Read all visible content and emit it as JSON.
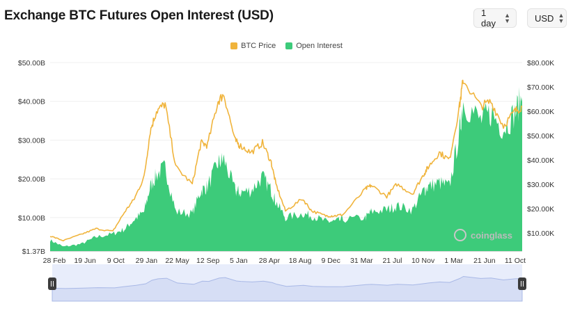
{
  "header": {
    "title": "Exchange BTC Futures Open Interest (USD)",
    "period_select": "1 day",
    "currency_select": "USD"
  },
  "watermark": "coinglass",
  "colors": {
    "btc_price": "#f0b43c",
    "open_interest": "#3dcb7a",
    "navigator_fill": "#e4eafb",
    "navigator_line": "#9fb3e8"
  },
  "chart_data": {
    "type": "area",
    "legend_placement": "top-center",
    "grid": true,
    "x_tick_labels": [
      "28 Feb",
      "19 Jun",
      "9 Oct",
      "29 Jan",
      "22 May",
      "12 Sep",
      "5 Jan",
      "28 Apr",
      "18 Aug",
      "9 Dec",
      "31 Mar",
      "21 Jul",
      "10 Nov",
      "1 Mar",
      "21 Jun",
      "11 Oct"
    ],
    "y_left_ticks": [
      "$1.37B",
      "$10.00B",
      "$20.00B",
      "$30.00B",
      "$40.00B",
      "$50.00B"
    ],
    "y_right_ticks": [
      "$10.00K",
      "$20.00K",
      "$30.00K",
      "$40.00K",
      "$50.00K",
      "$60.00K",
      "$70.00K",
      "$80.00K"
    ],
    "ylim_left": [
      1.37,
      50
    ],
    "ylim_right": [
      2500,
      80000
    ],
    "x": [
      "2020-02-28",
      "2020-04-15",
      "2020-06-19",
      "2020-08-10",
      "2020-10-09",
      "2020-11-20",
      "2020-12-25",
      "2021-01-29",
      "2021-02-20",
      "2021-03-14",
      "2021-04-14",
      "2021-05-22",
      "2021-07-20",
      "2021-08-20",
      "2021-09-12",
      "2021-10-20",
      "2021-11-10",
      "2021-12-20",
      "2022-01-05",
      "2022-02-15",
      "2022-03-28",
      "2022-04-28",
      "2022-05-15",
      "2022-06-18",
      "2022-08-18",
      "2022-09-20",
      "2022-11-09",
      "2022-12-09",
      "2023-01-10",
      "2023-03-31",
      "2023-04-20",
      "2023-06-15",
      "2023-07-21",
      "2023-09-15",
      "2023-10-25",
      "2023-11-10",
      "2023-12-20",
      "2024-01-25",
      "2024-03-01",
      "2024-03-14",
      "2024-05-15",
      "2024-06-21",
      "2024-08-05",
      "2024-09-15",
      "2024-10-11"
    ],
    "series": [
      {
        "name": "BTC Price",
        "axis": "right",
        "values": [
          8700,
          6800,
          9400,
          11700,
          10600,
          18500,
          24000,
          33000,
          52000,
          60000,
          63000,
          37000,
          30000,
          47000,
          46000,
          64000,
          67000,
          48000,
          46000,
          43000,
          47000,
          39000,
          30000,
          19000,
          24000,
          19000,
          17000,
          17000,
          17500,
          28000,
          29500,
          25000,
          30000,
          26000,
          34000,
          37000,
          43000,
          40000,
          62000,
          73000,
          62000,
          64000,
          54000,
          60000,
          62000
        ]
      },
      {
        "name": "Open Interest",
        "axis": "left",
        "values": [
          4.2,
          2.5,
          3.2,
          5.0,
          5.8,
          7.0,
          9.5,
          11.5,
          18.0,
          21.0,
          23.0,
          11.5,
          11.0,
          17.0,
          18.0,
          24.0,
          25.0,
          17.0,
          16.5,
          17.0,
          20.5,
          17.0,
          14.0,
          10.0,
          11.0,
          10.5,
          9.0,
          9.0,
          9.5,
          10.0,
          11.5,
          12.0,
          13.0,
          12.0,
          17.0,
          18.0,
          19.0,
          18.0,
          32.0,
          40.0,
          35.0,
          37.0,
          33.0,
          37.0,
          41.0
        ]
      }
    ]
  }
}
